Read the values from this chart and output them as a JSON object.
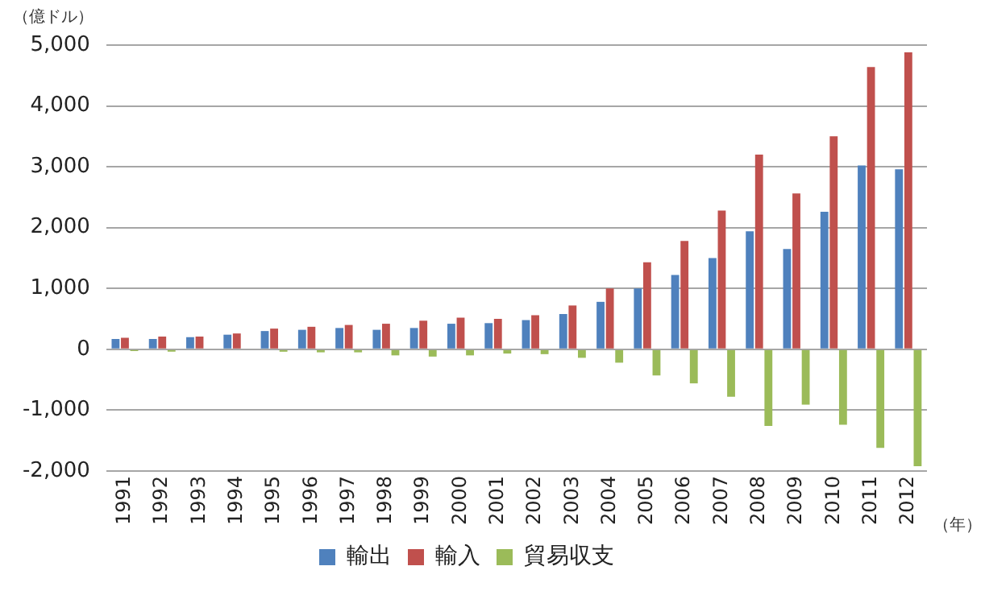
{
  "chart_data": {
    "type": "bar",
    "ylabel": "（億ドル）",
    "xlabel": "（年）",
    "categories": [
      "1991",
      "1992",
      "1993",
      "1994",
      "1995",
      "1996",
      "1997",
      "1998",
      "1999",
      "2000",
      "2001",
      "2002",
      "2003",
      "2004",
      "2005",
      "2006",
      "2007",
      "2008",
      "2009",
      "2010",
      "2011",
      "2012"
    ],
    "series": [
      {
        "name": "輸出",
        "color": "#4f81bd",
        "values": [
          170,
          170,
          200,
          240,
          300,
          320,
          350,
          320,
          350,
          420,
          430,
          480,
          580,
          780,
          1000,
          1220,
          1500,
          1940,
          1650,
          2260,
          3020,
          2960
        ]
      },
      {
        "name": "輸入",
        "color": "#c0504d",
        "values": [
          190,
          210,
          210,
          260,
          340,
          370,
          400,
          420,
          470,
          520,
          500,
          560,
          720,
          1000,
          1430,
          1780,
          2280,
          3200,
          2560,
          3500,
          4640,
          4880
        ]
      },
      {
        "name": "貿易収支",
        "color": "#9bbb59",
        "values": [
          -30,
          -40,
          null,
          null,
          -40,
          -50,
          -50,
          -100,
          -120,
          -100,
          -70,
          -80,
          -140,
          -220,
          -430,
          -560,
          -780,
          -1260,
          -910,
          -1240,
          -1620,
          -1920
        ]
      }
    ],
    "ylim": [
      -2000,
      5000
    ],
    "yticks": [
      {
        "value": -2000,
        "label": "-2,000"
      },
      {
        "value": -1000,
        "label": "-1,000"
      },
      0,
      {
        "value": 1000,
        "label": "1,000"
      },
      {
        "value": 2000,
        "label": "2,000"
      },
      {
        "value": 3000,
        "label": "3,000"
      },
      {
        "value": 4000,
        "label": "4,000"
      },
      {
        "value": 5000,
        "label": "5,000"
      }
    ],
    "grid": "y",
    "legend": "bottom"
  }
}
